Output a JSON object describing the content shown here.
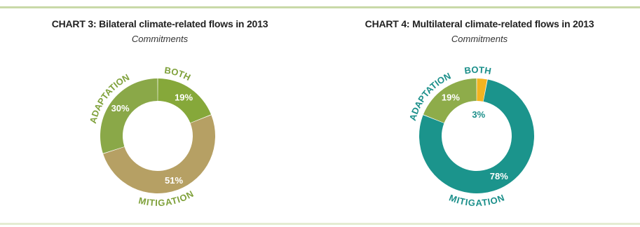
{
  "chart_data": [
    {
      "type": "pie",
      "title": "CHART 3: Bilateral climate-related flows in 2013",
      "subtitle": "Commitments",
      "categories": [
        "BOTH",
        "MITIGATION",
        "ADAPTATION"
      ],
      "values": [
        19,
        51,
        30
      ],
      "value_labels": [
        "19%",
        "51%",
        "30%"
      ],
      "colors": [
        "#86a83a",
        "#b6a064",
        "#8aa848"
      ],
      "label_color": "#7fa13b"
    },
    {
      "type": "pie",
      "title": "CHART 4: Multilateral climate-related flows in 2013",
      "subtitle": "Commitments",
      "categories": [
        "BOTH",
        "MITIGATION",
        "ADAPTATION"
      ],
      "values": [
        3,
        78,
        19
      ],
      "value_labels": [
        "3%",
        "78%",
        "19%"
      ],
      "colors": [
        "#f2b420",
        "#1b948c",
        "#8eac4a"
      ],
      "label_color": "#1b8f8a"
    }
  ]
}
